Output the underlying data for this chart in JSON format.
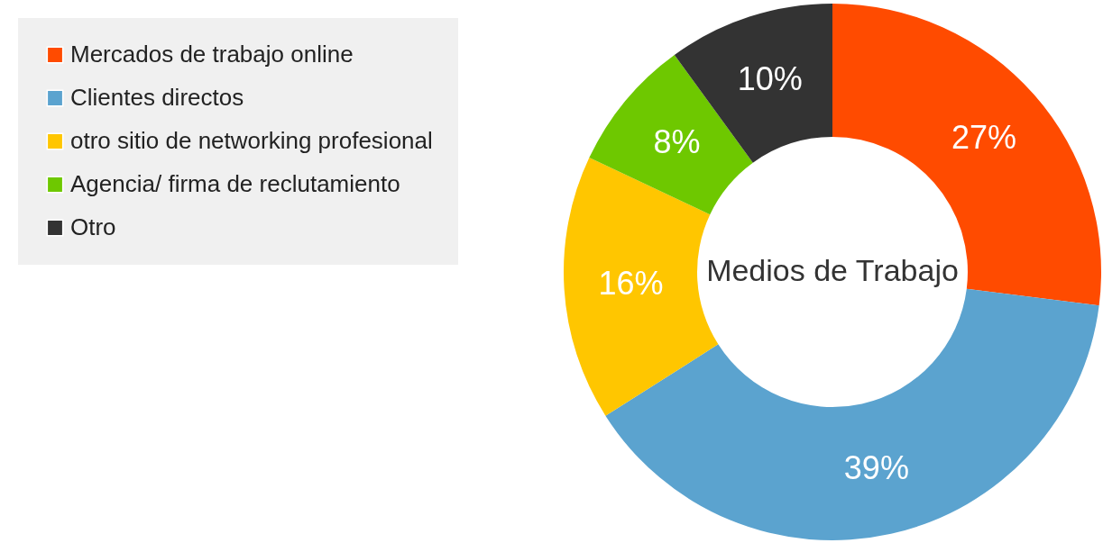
{
  "chart_data": {
    "type": "donut",
    "title": "Medios de Trabajo",
    "categories": [
      "Mercados de trabajo online",
      "Clientes directos",
      "otro sitio de networking profesional",
      "Agencia/ firma de reclutamiento",
      "Otro"
    ],
    "values": [
      27,
      39,
      16,
      8,
      10
    ],
    "colors": [
      "#ff4b00",
      "#5ba3cf",
      "#ffc600",
      "#6ec800",
      "#333333"
    ],
    "value_labels": [
      "27%",
      "39%",
      "16%",
      "8%",
      "10%"
    ],
    "legend": "top left"
  }
}
